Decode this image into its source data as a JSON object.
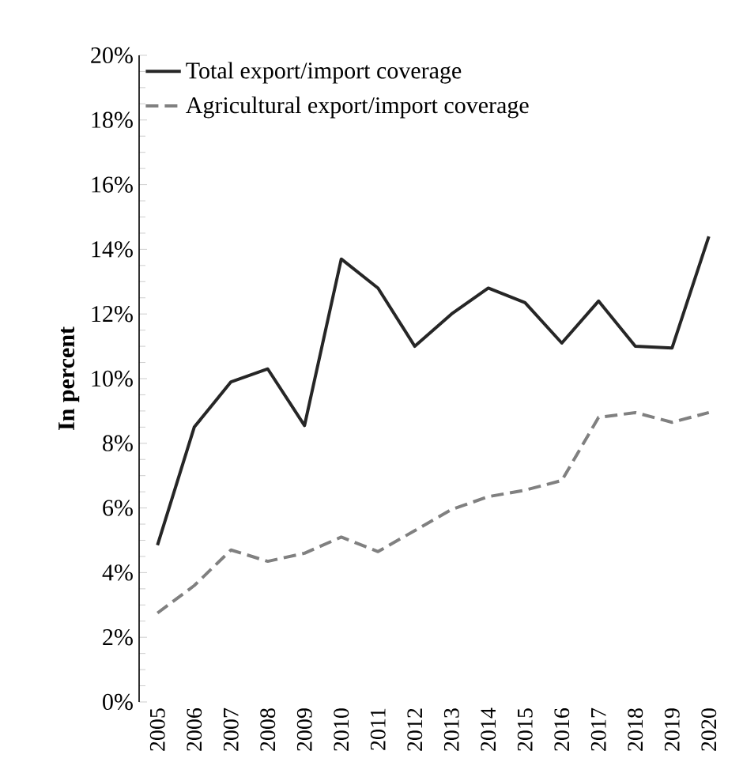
{
  "chart_data": {
    "type": "line",
    "ylabel": "In percent",
    "categories": [
      "2005",
      "2006",
      "2007",
      "2008",
      "2009",
      "2010",
      "2011",
      "2012",
      "2013",
      "2014",
      "2015",
      "2016",
      "2017",
      "2018",
      "2019",
      "2020"
    ],
    "series": [
      {
        "name": "Total export/import coverage",
        "color": "#262626",
        "line_style": "solid",
        "values": [
          4.85,
          8.5,
          9.9,
          10.3,
          8.55,
          13.7,
          12.8,
          11.0,
          12.0,
          12.8,
          12.35,
          11.1,
          12.4,
          11.0,
          10.95,
          14.4
        ]
      },
      {
        "name": "Agricultural export/import coverage",
        "color": "#808080",
        "line_style": "dashed",
        "values": [
          2.75,
          3.6,
          4.7,
          4.35,
          4.6,
          5.1,
          4.65,
          5.3,
          5.95,
          6.35,
          6.55,
          6.85,
          8.8,
          8.95,
          8.65,
          8.95
        ]
      }
    ],
    "ylim": [
      0,
      20
    ],
    "yticks": [
      {
        "value": 0,
        "label": "0%"
      },
      {
        "value": 2,
        "label": "2%"
      },
      {
        "value": 4,
        "label": "4%"
      },
      {
        "value": 6,
        "label": "6%"
      },
      {
        "value": 8,
        "label": "8%"
      },
      {
        "value": 10,
        "label": "10%"
      },
      {
        "value": 12,
        "label": "12%"
      },
      {
        "value": 14,
        "label": "14%"
      },
      {
        "value": 16,
        "label": "16%"
      },
      {
        "value": 18,
        "label": "18%"
      },
      {
        "value": 20,
        "label": "20%"
      }
    ],
    "grid": false,
    "legend": "top",
    "marker": "none"
  }
}
